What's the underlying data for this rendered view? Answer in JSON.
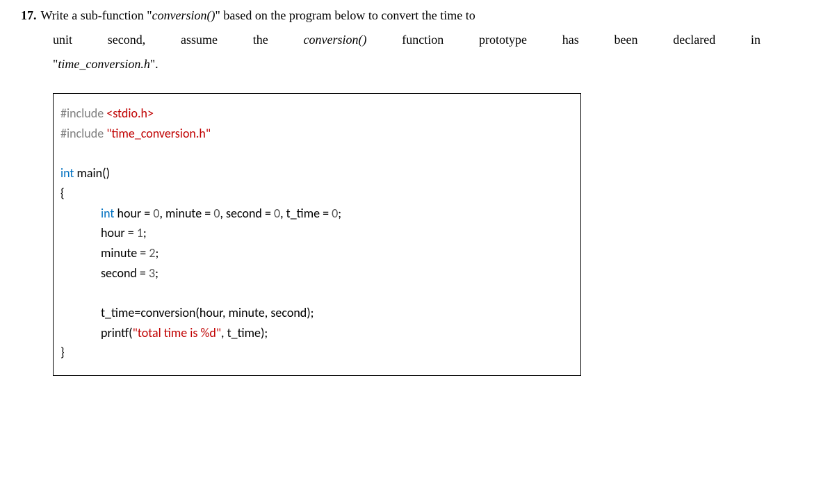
{
  "question": {
    "number": "17.",
    "line1_part1": "Write a sub-function \"",
    "line1_func": "conversion()",
    "line1_part2": "\" based on the program below to convert the time to",
    "line2_part1": "unit second, assume the ",
    "line2_func": "conversion()",
    "line2_part2": " function prototype has been declared in",
    "line3_part1": "\"",
    "line3_file": "time_conversion.h",
    "line3_part2": "\"."
  },
  "code": {
    "include1_directive": "#include ",
    "include1_path": "<stdio.h>",
    "include2_directive": "#include ",
    "include2_path": "\"time_conversion.h\"",
    "main_type": "int",
    "main_sig": " main()",
    "brace_open": "{",
    "decl_type": "int",
    "decl_p1": " hour = ",
    "decl_v1": "0",
    "decl_p2": ", minute = ",
    "decl_v2": "0",
    "decl_p3": ", second = ",
    "decl_v3": "0",
    "decl_p4": ", t_time = ",
    "decl_v4": "0",
    "decl_p5": ";",
    "hour_assign_p1": "hour = ",
    "hour_assign_v": "1",
    "hour_assign_p2": ";",
    "min_assign_p1": "minute = ",
    "min_assign_v": "2",
    "min_assign_p2": ";",
    "sec_assign_p1": "second = ",
    "sec_assign_v": "3",
    "sec_assign_p2": ";",
    "call_line": "t_time=conversion(hour, minute, second);",
    "printf_p1": "printf(",
    "printf_str": "\"total time is %d\"",
    "printf_p2": ", t_time);",
    "brace_close": "}"
  }
}
